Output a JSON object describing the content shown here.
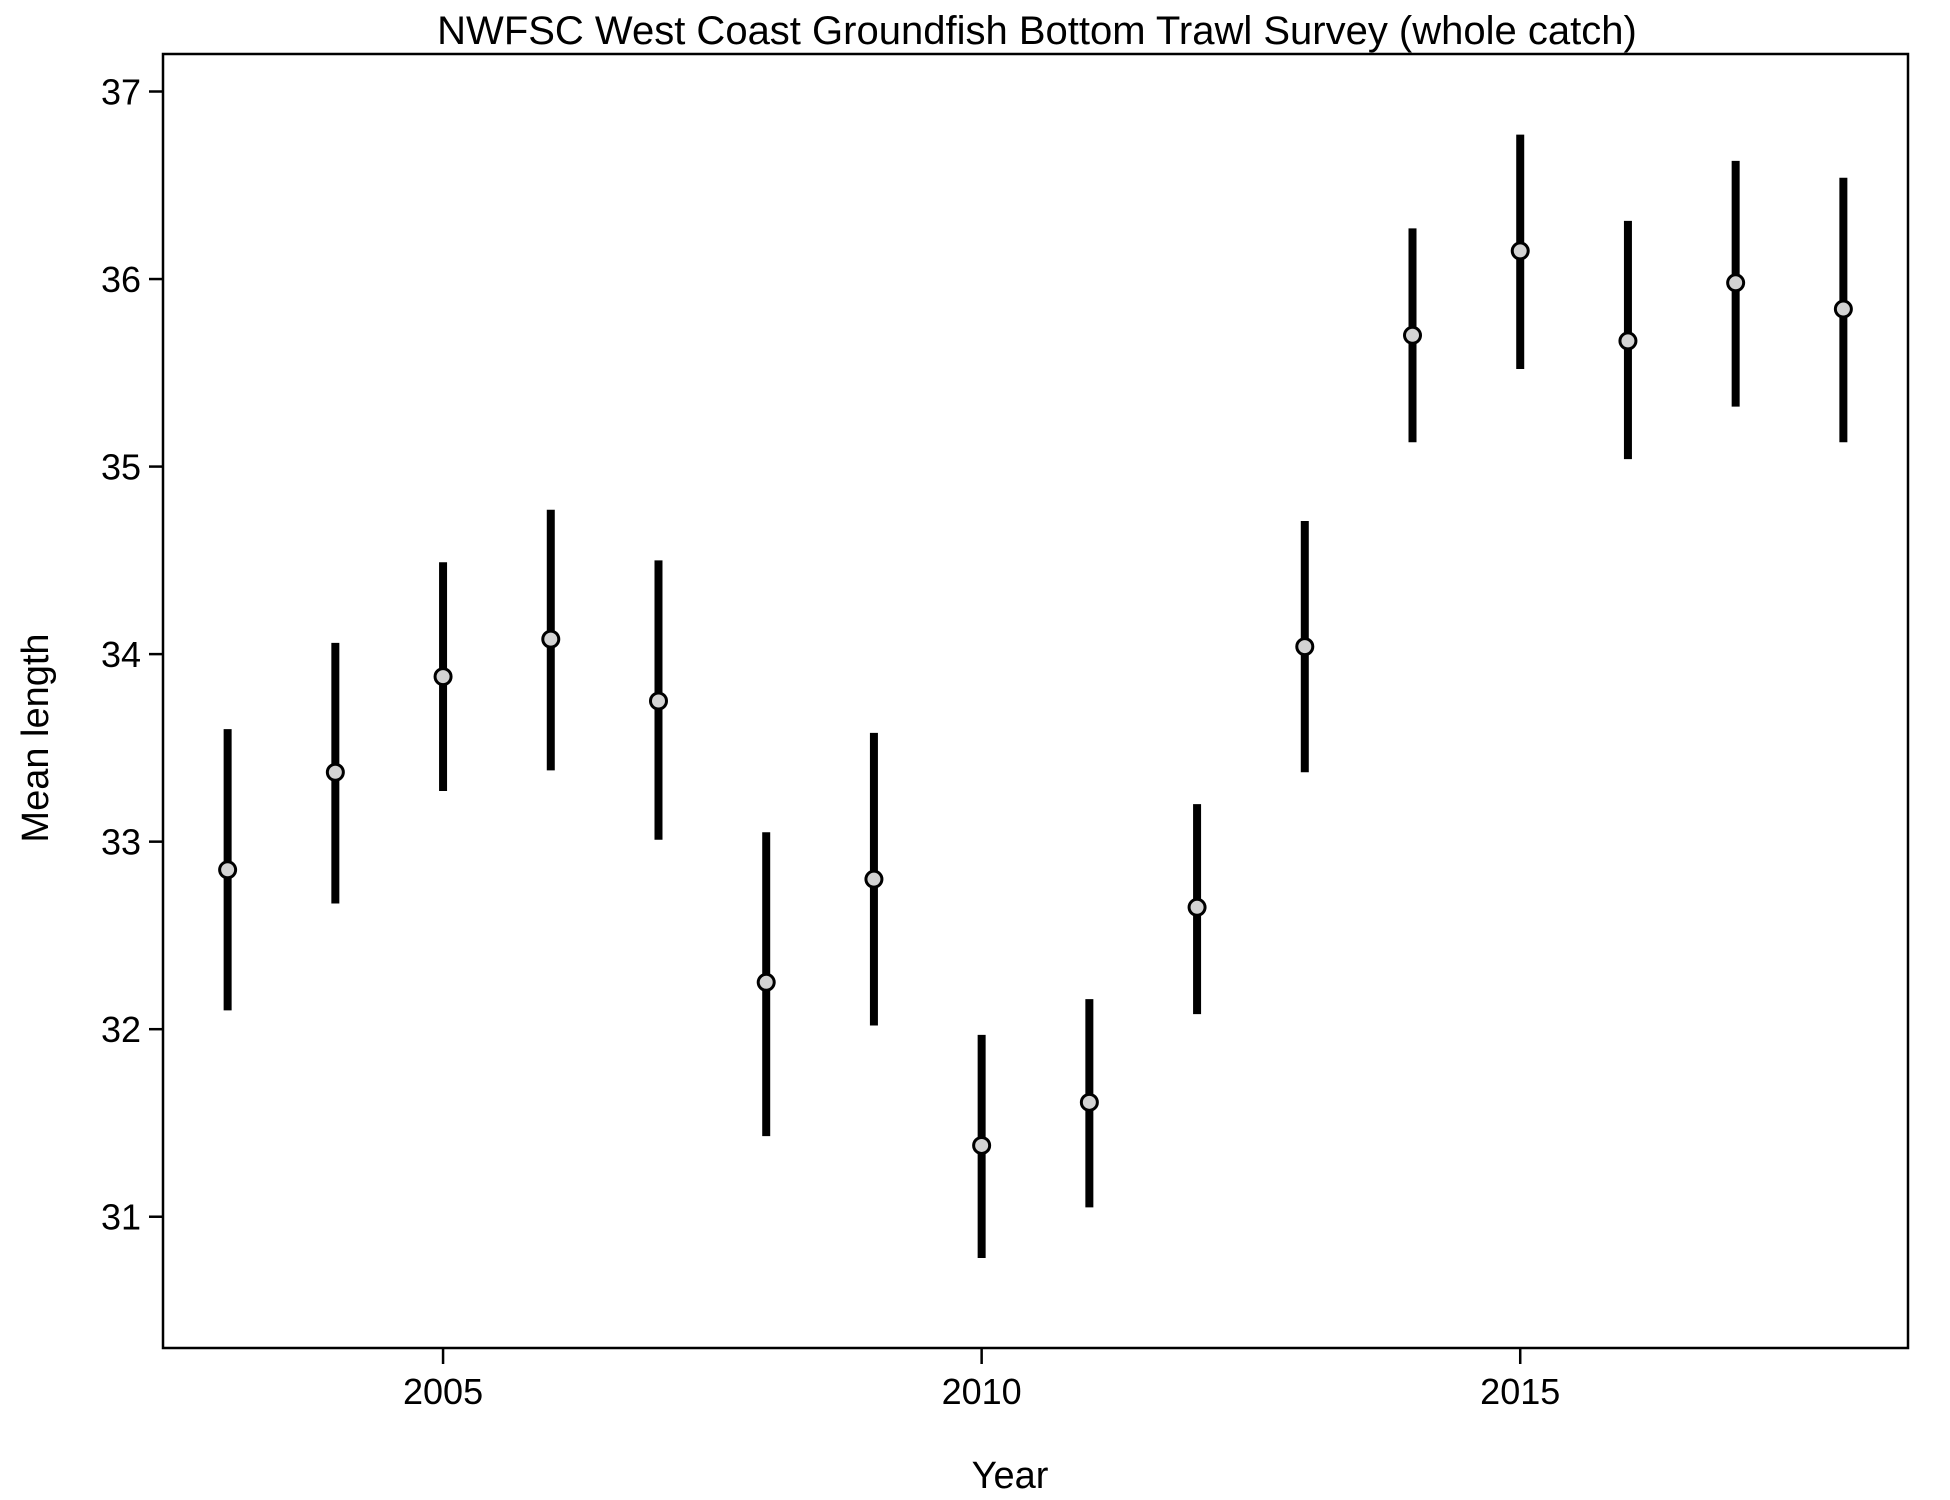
{
  "chart_data": {
    "type": "scatter",
    "title": "NWFSC West Coast Groundfish Bottom Trawl Survey (whole catch)",
    "xlabel": "Year",
    "ylabel": "Mean length",
    "xlim": [
      2002.4,
      2018.6
    ],
    "ylim": [
      30.3,
      37.2
    ],
    "x_ticks": [
      2005,
      2010,
      2015
    ],
    "y_ticks": [
      31,
      32,
      33,
      34,
      35,
      36,
      37
    ],
    "grid": false,
    "series": [
      {
        "x": [
          2003,
          2004,
          2005,
          2006,
          2007,
          2008,
          2009,
          2010,
          2011,
          2012,
          2013,
          2014,
          2015,
          2016,
          2017,
          2018
        ],
        "y": [
          32.85,
          33.37,
          33.88,
          34.08,
          33.75,
          32.25,
          32.8,
          31.38,
          31.61,
          32.65,
          34.04,
          35.7,
          36.15,
          35.67,
          35.98,
          35.84
        ],
        "lower": [
          32.1,
          32.67,
          33.27,
          33.38,
          33.01,
          31.43,
          32.02,
          30.78,
          31.05,
          32.08,
          33.37,
          35.13,
          35.52,
          35.04,
          35.32,
          35.13
        ],
        "upper": [
          33.6,
          34.06,
          34.49,
          34.77,
          34.5,
          33.05,
          33.58,
          31.97,
          32.16,
          33.2,
          34.71,
          36.27,
          36.77,
          36.31,
          36.63,
          36.54
        ]
      }
    ],
    "colors": {
      "error_bar": "#000000",
      "point_fill": "#d3d3d3",
      "point_stroke": "#000000",
      "axis": "#000000"
    }
  }
}
